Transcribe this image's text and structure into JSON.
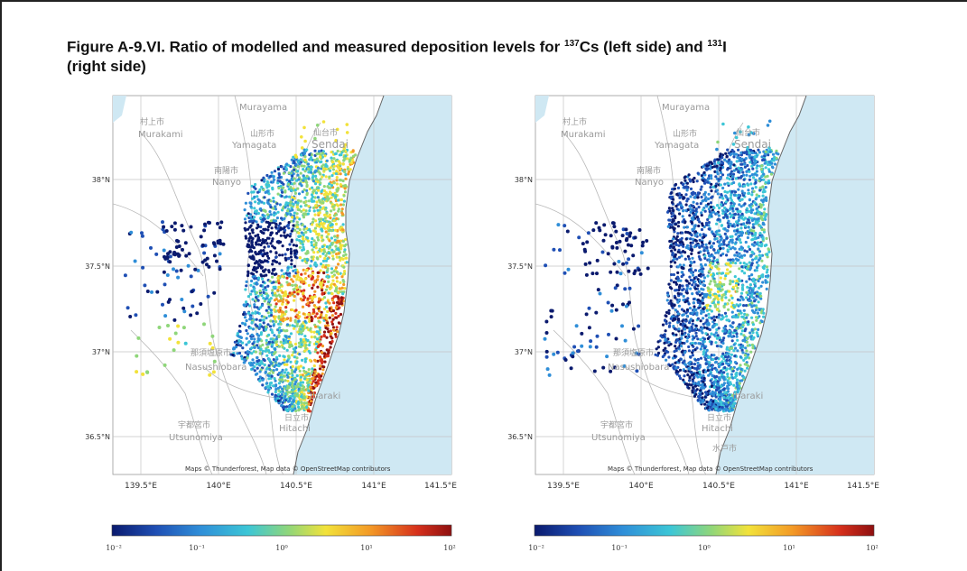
{
  "figure": {
    "title_prefix": "Figure A-9.VI. Ratio of modelled and measured deposition levels for ",
    "title_iso1": "137",
    "title_el1": "Cs (left side) and ",
    "title_iso2": "131",
    "title_el2": "I",
    "title_line2": "(right side)"
  },
  "maps": [
    {
      "id": "cs137",
      "place_labels": {
        "murakami_jp": "村上市",
        "murakami": "Murakami",
        "murayama": "Murayama",
        "yamagata_jp": "山形市",
        "yamagata": "Yamagata",
        "sendai_jp": "仙台市",
        "sendai": "Sendai",
        "nanyo_jp": "南陽市",
        "nanyo": "Nanyo",
        "nasushiobara_jp": "那須塩原市",
        "nasushiobara": "Nasushiobara",
        "ibaraki": "Ibaraki",
        "hitachi_jp": "日立市",
        "hitachi": "Hitachi",
        "utsunomiya_jp": "宇都宮市",
        "utsunomiya": "Utsunomiya"
      },
      "lat_labels": [
        "38°N",
        "37.5°N",
        "37°N",
        "36.5°N"
      ],
      "lon_labels": [
        "139.5°E",
        "140°E",
        "140.5°E",
        "141°E",
        "141.5°E"
      ],
      "credit": "Maps © Thunderforest, Map data © OpenStreetMap contributors",
      "colorbar_ticks": [
        "10⁻²",
        "10⁻¹",
        "10⁰",
        "10¹",
        "10²"
      ]
    },
    {
      "id": "i131",
      "place_labels": {
        "murakami_jp": "村上市",
        "murakami": "Murakami",
        "murayama": "Murayama",
        "yamagata_jp": "山形市",
        "yamagata": "Yamagata",
        "sendai_jp": "仙台市",
        "sendai": "Sendai",
        "nanyo_jp": "南陽市",
        "nanyo": "Nanyo",
        "nasushiobara_jp": "那須塩原市",
        "nasushiobara": "Nasushiobara",
        "ibaraki": "Ibaraki",
        "hitachi_jp": "日立市",
        "hitachi": "Hitachi",
        "utsunomiya_jp": "宇都宮市",
        "utsunomiya": "Utsunomiya",
        "mito_jp": "水戸市"
      },
      "lat_labels": [
        "38°N",
        "37.5°N",
        "37°N",
        "36.5°N"
      ],
      "lon_labels": [
        "139.5°E",
        "140°E",
        "140.5°E",
        "141°E",
        "141.5°E"
      ],
      "credit": "Maps © Thunderforest, Map data © OpenStreetMap contributors",
      "colorbar_ticks": [
        "10⁻²",
        "10⁻¹",
        "10⁰",
        "10¹",
        "10²"
      ]
    }
  ],
  "colors": {
    "sea": "#cfe8f3",
    "land": "#ffffff",
    "colormap": [
      "#0a1a6e",
      "#1f4fb4",
      "#2f8ed8",
      "#3cc6d6",
      "#8fd67a",
      "#f2e23a",
      "#f39a26",
      "#d6301c",
      "#8e1010"
    ]
  }
}
